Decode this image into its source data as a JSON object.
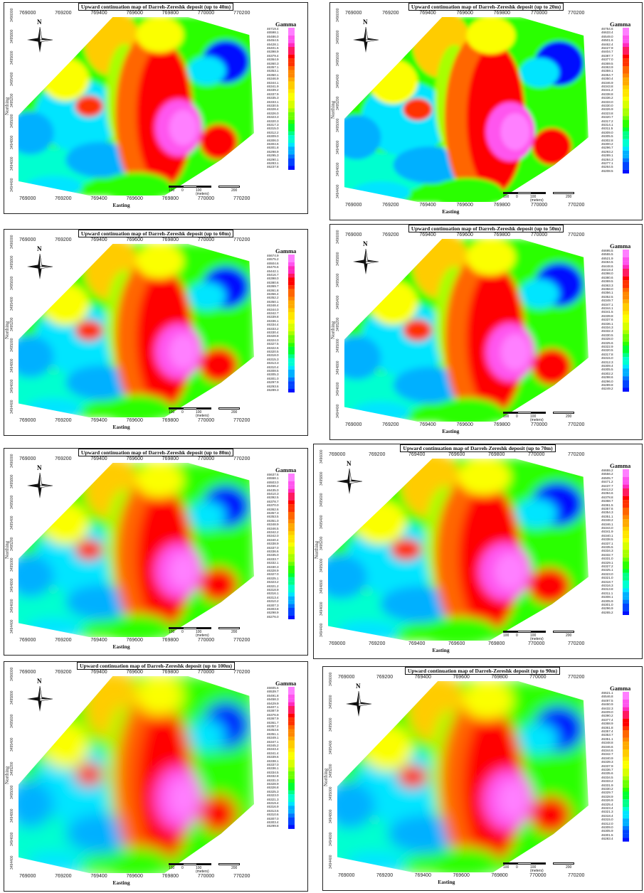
{
  "colorbar_colors": [
    "#ff7fff",
    "#ff55ee",
    "#ff2bbd",
    "#ff1a60",
    "#ff0000",
    "#ff3300",
    "#ff6600",
    "#ff8800",
    "#ffaa00",
    "#ffcc00",
    "#ffe600",
    "#fbff00",
    "#d8ff00",
    "#a8ff00",
    "#6cff00",
    "#2cff00",
    "#00ff33",
    "#00ff88",
    "#00ffd0",
    "#00e5ff",
    "#00b0ff",
    "#0077ff",
    "#0044ff",
    "#0010ff"
  ],
  "legend_title": "Gamma",
  "x_axis_label": "Easting",
  "y_axis_label": "Northing",
  "x_ticks": [
    "769000",
    "769200",
    "769400",
    "769600",
    "769800",
    "770000",
    "770200"
  ],
  "y_ticks": [
    "3494400",
    "3494600",
    "3494800",
    "3495000",
    "3495200",
    "3495400",
    "3495600",
    "3495800",
    "3496000"
  ],
  "scale_labels": [
    "100",
    "0",
    "100",
    "200"
  ],
  "scale_unit": "(meters)",
  "north_label": "N",
  "panels": [
    {
      "id": "p40",
      "title": "Upward continuation map of Darreh-Zereshk deposit (up to 40m)",
      "values": [
        "46719.4",
        "46598.1",
        "46486.0",
        "46454.5",
        "46428.1",
        "46401.5",
        "46398.9",
        "46379.4",
        "46364.9",
        "46360.3",
        "46357.1",
        "46353.1",
        "46350.1",
        "46346.9",
        "46344.1",
        "46341.9",
        "46339.2",
        "46337.9",
        "46335.3",
        "46333.1",
        "46330.5",
        "46328.4",
        "46326.0",
        "46323.3",
        "46320.3",
        "46317.3",
        "46315.0",
        "46312.2",
        "46309.0",
        "46306.0",
        "46304.6",
        "46301.8",
        "46298.9",
        "46295.3",
        "46290.1",
        "46283.1",
        "46237.8"
      ]
    },
    {
      "id": "p20",
      "title": "Upward continuation map of Darreh-Zereshk deposit (up to 20m)",
      "values": [
        "46754.6",
        "46633.4",
        "46549.0",
        "46501.6",
        "46462.4",
        "46427.9",
        "46404.7",
        "46387.7",
        "46377.0",
        "46369.5",
        "46363.9",
        "46359.1",
        "46354.7",
        "46350.4",
        "46346.9",
        "46343.8",
        "46341.2",
        "46338.8",
        "46336.2",
        "46333.0",
        "46330.0",
        "46326.9",
        "46323.8",
        "46320.7",
        "46317.2",
        "46314.1",
        "46311.5",
        "46309.0",
        "46305.5",
        "46302.8",
        "46300.2",
        "46296.7",
        "46293.2",
        "46289.1",
        "46284.3",
        "46277.1",
        "46264.5",
        "46208.5"
      ]
    },
    {
      "id": "p60",
      "title": "Upward continuation map of Darreh-Zereshk deposit (up to 60m)",
      "values": [
        "46674.9",
        "46575.2",
        "46504.6",
        "46476.6",
        "46442.1",
        "46416.7",
        "46398.0",
        "46380.6",
        "46369.7",
        "46361.8",
        "46356.4",
        "46352.2",
        "46350.1",
        "46348.4",
        "46344.0",
        "46342.7",
        "46339.8",
        "46336.1",
        "46334.4",
        "46333.2",
        "46330.4",
        "46328.8",
        "46324.0",
        "46327.5",
        "46322.6",
        "46320.5",
        "46318.0",
        "46315.3",
        "46313.3",
        "46310.4",
        "46308.5",
        "46305.3",
        "46301.0",
        "46297.9",
        "46293.6",
        "46289.3"
      ]
    },
    {
      "id": "p50",
      "title": "Upward continuation map of Darreh-Zereshk deposit (up to 50m)",
      "values": [
        "46695.5",
        "46555.5",
        "46521.9",
        "46484.5",
        "46448.6",
        "46419.4",
        "46398.0",
        "46380.6",
        "46369.5",
        "46363.3",
        "46358.0",
        "46356.1",
        "46352.5",
        "46349.7",
        "46347.1",
        "46344.1",
        "46341.5",
        "46339.8",
        "46337.6",
        "46336.1",
        "46334.3",
        "46332.3",
        "46330.5",
        "46328.0",
        "46325.6",
        "46322.9",
        "46320.5",
        "46317.8",
        "46315.0",
        "46312.3",
        "46309.4",
        "46305.5",
        "46302.2",
        "46298.6",
        "46296.0",
        "46289.8",
        "46249.2"
      ]
    },
    {
      "id": "p80",
      "title": "Upward continuation map of Darreh-Zereshk deposit (up to 80m)",
      "values": [
        "46637.6",
        "46558.1",
        "46503.0",
        "46466.2",
        "46435.0",
        "46410.3",
        "46392.5",
        "46378.7",
        "46370.0",
        "46362.6",
        "46357.3",
        "46353.5",
        "46351.0",
        "46348.9",
        "46346.5",
        "46342.2",
        "46342.0",
        "46340.4",
        "46338.9",
        "46337.0",
        "46336.6",
        "46335.0",
        "46333.7",
        "46332.1",
        "46330.3",
        "46328.9",
        "46327.0",
        "46325.1",
        "46323.2",
        "46321.2",
        "46318.9",
        "46316.1",
        "46313.4",
        "46310.2",
        "46307.3",
        "46303.8",
        "46298.9",
        "46276.0"
      ]
    },
    {
      "id": "p70",
      "title": "Upward continuation map of Darreh-Zereshk deposit (up to 70m)",
      "values": [
        "46655.2",
        "46556.2",
        "46505.7",
        "46471.2",
        "46437.7",
        "46413.2",
        "46394.6",
        "46378.8",
        "46368.7",
        "46361.5",
        "46357.6",
        "46354.3",
        "46351.1",
        "46348.2",
        "46346.1",
        "46344.0",
        "46341.9",
        "46340.1",
        "46338.5",
        "46337.1",
        "46335.5",
        "46334.3",
        "46332.7",
        "46331.0",
        "46329.1",
        "46327.2",
        "46325.1",
        "46323.0",
        "46321.0",
        "46318.7",
        "46316.3",
        "46313.8",
        "46311.1",
        "46308.1",
        "46305.9",
        "46301.0",
        "46296.9",
        "46265.2"
      ]
    },
    {
      "id": "p100",
      "title": "Upward continuation map of Darreh-Zereshk deposit (up to 100m)",
      "values": [
        "46605.5",
        "46539.7",
        "46491.8",
        "46458.3",
        "46429.9",
        "46407.1",
        "46387.9",
        "46376.9",
        "46367.9",
        "46361.7",
        "46357.2",
        "46353.6",
        "46351.1",
        "46349.1",
        "46347.1",
        "46345.2",
        "46343.4",
        "46341.4",
        "46339.6",
        "46338.1",
        "46337.0",
        "46336.1",
        "46334.5",
        "46332.8",
        "46331.0",
        "46328.9",
        "46326.8",
        "46325.3",
        "46323.0",
        "46321.3",
        "46319.4",
        "46316.9",
        "46313.6",
        "46310.6",
        "46307.0",
        "46303.4",
        "46299.8"
      ]
    },
    {
      "id": "p90",
      "title": "Upward continuation map of Darreh-Zereshk deposit (up to 90m)",
      "values": [
        "46621.1",
        "46546.8",
        "46497.5",
        "46460.9",
        "46432.3",
        "46409.0",
        "46390.2",
        "46377.4",
        "46368.9",
        "46361.8",
        "46357.4",
        "46353.7",
        "46351.1",
        "46348.8",
        "46346.6",
        "46344.6",
        "46342.7",
        "46340.9",
        "46339.3",
        "46337.9",
        "46336.7",
        "46335.6",
        "46334.5",
        "46333.2",
        "46331.9",
        "46330.2",
        "46329.7",
        "46328.9",
        "46326.9",
        "46325.4",
        "46323.4",
        "46321.3",
        "46318.4",
        "46315.0",
        "46312.0",
        "46309.0",
        "46305.9",
        "46301.5",
        "46283.4"
      ]
    }
  ]
}
